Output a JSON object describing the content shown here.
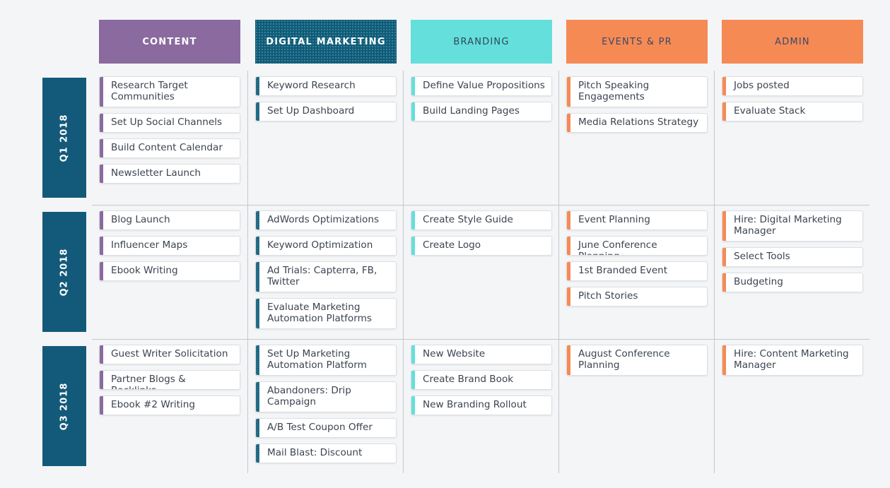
{
  "colors": {
    "content": "#8a6a9f",
    "digital_marketing": "#0d5c79",
    "branding": "#64dfdb",
    "events": "#f68a55",
    "admin": "#f68a55",
    "row_label": "#135a7a"
  },
  "columns": [
    {
      "key": "content",
      "label": "CONTENT"
    },
    {
      "key": "digital_marketing",
      "label": "DIGITAL MARKETING"
    },
    {
      "key": "branding",
      "label": "BRANDING"
    },
    {
      "key": "events",
      "label": "EVENTS & PR"
    },
    {
      "key": "admin",
      "label": "ADMIN"
    }
  ],
  "rows": [
    {
      "label": "Q1 2018",
      "cells": [
        [
          "Research Target Communities",
          "Set Up Social Channels",
          "Build Content Calendar",
          "Newsletter Launch"
        ],
        [
          "Keyword Research",
          "Set Up Dashboard"
        ],
        [
          "Define Value Propositions",
          "Build Landing Pages"
        ],
        [
          "Pitch Speaking Engagements",
          "Media Relations Strategy"
        ],
        [
          "Jobs posted",
          "Evaluate Stack"
        ]
      ]
    },
    {
      "label": "Q2 2018",
      "cells": [
        [
          "Blog Launch",
          "Influencer Maps",
          "Ebook Writing"
        ],
        [
          "AdWords Optimizations",
          "Keyword Optimization",
          "Ad Trials: Capterra, FB, Twitter",
          "Evaluate Marketing Automation Platforms"
        ],
        [
          "Create Style Guide",
          "Create Logo"
        ],
        [
          "Event Planning",
          "June Conference Planning",
          "1st Branded Event",
          "Pitch Stories"
        ],
        [
          "Hire: Digital Marketing Manager",
          "Select Tools",
          "Budgeting"
        ]
      ]
    },
    {
      "label": "Q3 2018",
      "cells": [
        [
          "Guest Writer Solicitation",
          "Partner Blogs & Backlinks",
          "Ebook #2 Writing"
        ],
        [
          "Set Up Marketing Automation Platform",
          "Abandoners: Drip Campaign",
          "A/B Test Coupon Offer",
          "Mail Blast: Discount"
        ],
        [
          "New Website",
          "Create Brand Book",
          "New Branding Rollout"
        ],
        [
          "August Conference Planning"
        ],
        [
          "Hire: Content Marketing Manager"
        ]
      ]
    }
  ]
}
